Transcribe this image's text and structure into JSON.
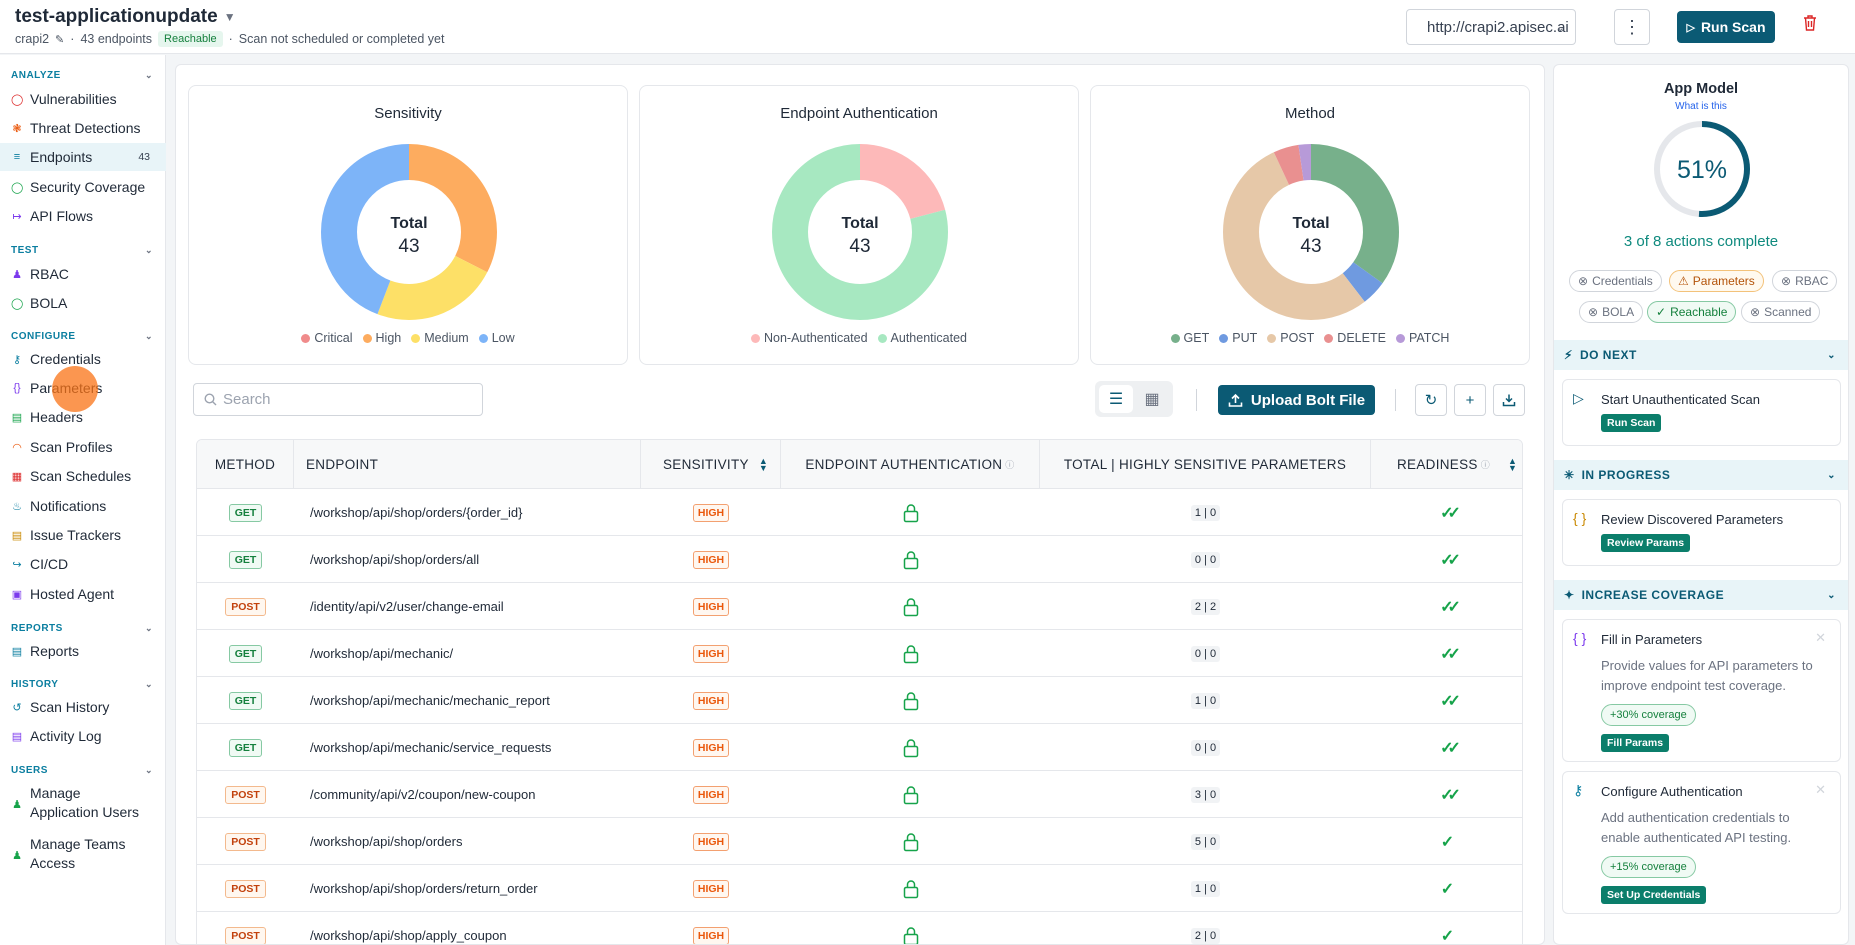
{
  "header": {
    "app_title": "test-applicationupdate",
    "app_name": "crapi2",
    "endpoints_count": "43 endpoints",
    "status_badge": "Reachable",
    "scan_status": "Scan not scheduled or completed yet",
    "url": "http://crapi2.apisec.ai",
    "run_scan_label": "Run Scan"
  },
  "sidebar": {
    "analyze": "ANALYZE",
    "test": "TEST",
    "configure": "CONFIGURE",
    "reports": "REPORTS",
    "history": "HISTORY",
    "users": "USERS",
    "items": {
      "vulnerabilities": "Vulnerabilities",
      "threat_detections": "Threat Detections",
      "endpoints": "Endpoints",
      "endpoints_count": "43",
      "security_coverage": "Security Coverage",
      "api_flows": "API Flows",
      "rbac": "RBAC",
      "bola": "BOLA",
      "credentials": "Credentials",
      "parameters": "Parameters",
      "headers": "Headers",
      "scan_profiles": "Scan Profiles",
      "scan_schedules": "Scan Schedules",
      "notifications": "Notifications",
      "issue_trackers": "Issue Trackers",
      "cicd": "CI/CD",
      "hosted_agent": "Hosted Agent",
      "reports": "Reports",
      "scan_history": "Scan History",
      "activity_log": "Activity Log",
      "manage_app_users_1": "Manage",
      "manage_app_users_2": "Application Users",
      "manage_teams_1": "Manage Teams",
      "manage_teams_2": "Access"
    }
  },
  "charts": {
    "total_label": "Total",
    "sensitivity": {
      "title": "Sensitivity",
      "total": "43"
    },
    "auth": {
      "title": "Endpoint Authentication",
      "total": "43"
    },
    "method": {
      "title": "Method",
      "total": "43"
    }
  },
  "chart_data": [
    {
      "type": "pie",
      "title": "Sensitivity",
      "categories": [
        "Critical",
        "High",
        "Medium",
        "Low"
      ],
      "values": [
        0,
        14,
        10,
        19
      ],
      "colors": [
        "#f08b8b",
        "#fdac5f",
        "#fde067",
        "#7db4f8"
      ]
    },
    {
      "type": "pie",
      "title": "Endpoint Authentication",
      "categories": [
        "Non-Authenticated",
        "Authenticated"
      ],
      "values": [
        9,
        34
      ],
      "colors": [
        "#fdb9b9",
        "#a7e8c1"
      ]
    },
    {
      "type": "pie",
      "title": "Method",
      "categories": [
        "GET",
        "PUT",
        "POST",
        "DELETE",
        "PATCH"
      ],
      "values": [
        15,
        2,
        23,
        2,
        1
      ],
      "colors": [
        "#77b08b",
        "#6f9ae0",
        "#e6c8a8",
        "#e99090",
        "#b79ad8"
      ]
    }
  ],
  "toolbar": {
    "search_placeholder": "Search",
    "upload_label": "Upload Bolt File"
  },
  "table": {
    "headers": {
      "method": "METHOD",
      "endpoint": "ENDPOINT",
      "sensitivity": "SENSITIVITY",
      "auth": "ENDPOINT AUTHENTICATION",
      "params": "TOTAL | HIGHLY SENSITIVE PARAMETERS",
      "readiness": "READINESS"
    },
    "rows": [
      {
        "method": "GET",
        "endpoint": "/workshop/api/shop/orders/{order_id}",
        "sensitivity": "HIGH",
        "params": "1 | 0",
        "readiness": "double"
      },
      {
        "method": "GET",
        "endpoint": "/workshop/api/shop/orders/all",
        "sensitivity": "HIGH",
        "params": "0 | 0",
        "readiness": "double"
      },
      {
        "method": "POST",
        "endpoint": "/identity/api/v2/user/change-email",
        "sensitivity": "HIGH",
        "params": "2 | 2",
        "readiness": "double"
      },
      {
        "method": "GET",
        "endpoint": "/workshop/api/mechanic/",
        "sensitivity": "HIGH",
        "params": "0 | 0",
        "readiness": "double"
      },
      {
        "method": "GET",
        "endpoint": "/workshop/api/mechanic/mechanic_report",
        "sensitivity": "HIGH",
        "params": "1 | 0",
        "readiness": "double"
      },
      {
        "method": "GET",
        "endpoint": "/workshop/api/mechanic/service_requests",
        "sensitivity": "HIGH",
        "params": "0 | 0",
        "readiness": "double"
      },
      {
        "method": "POST",
        "endpoint": "/community/api/v2/coupon/new-coupon",
        "sensitivity": "HIGH",
        "params": "3 | 0",
        "readiness": "double"
      },
      {
        "method": "POST",
        "endpoint": "/workshop/api/shop/orders",
        "sensitivity": "HIGH",
        "params": "5 | 0",
        "readiness": "single"
      },
      {
        "method": "POST",
        "endpoint": "/workshop/api/shop/orders/return_order",
        "sensitivity": "HIGH",
        "params": "1 | 0",
        "readiness": "single"
      },
      {
        "method": "POST",
        "endpoint": "/workshop/api/shop/apply_coupon",
        "sensitivity": "HIGH",
        "params": "2 | 0",
        "readiness": "single"
      }
    ]
  },
  "panel": {
    "title": "App Model",
    "link": "What is this",
    "percent": "51%",
    "percent_value": 51,
    "progress_text": "3 of 8 actions complete",
    "chips": {
      "credentials": "Credentials",
      "parameters": "Parameters",
      "rbac": "RBAC",
      "bola": "BOLA",
      "reachable": "Reachable",
      "scanned": "Scanned"
    },
    "do_next": "DO NEXT",
    "start_scan_title": "Start Unauthenticated Scan",
    "start_scan_btn": "Run Scan",
    "in_progress": "IN PROGRESS",
    "review_title": "Review Discovered Parameters",
    "review_btn": "Review Params",
    "increase": "INCREASE COVERAGE",
    "fill_title": "Fill in Parameters",
    "fill_desc": "Provide values for API parameters to improve endpoint test coverage.",
    "fill_cov": "+30% coverage",
    "fill_btn": "Fill Params",
    "auth_title": "Configure Authentication",
    "auth_desc": "Add authentication credentials to enable authenticated API testing.",
    "auth_cov": "+15% coverage",
    "auth_btn": "Set Up Credentials"
  }
}
